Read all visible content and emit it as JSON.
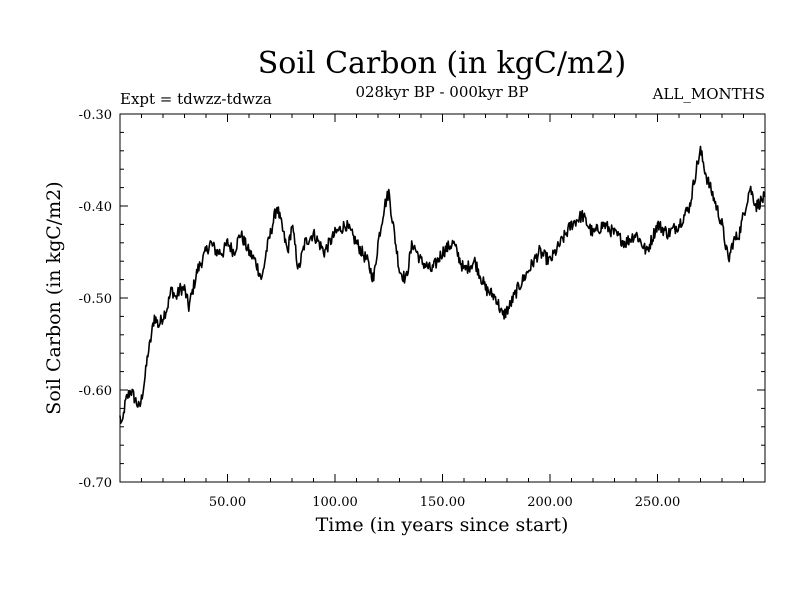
{
  "chart_data": {
    "type": "line",
    "title": "Soil Carbon (in kgC/m2)",
    "subtitle": "028kyr BP - 000kyr BP",
    "left_label": "Expt = tdwzz-tdwza",
    "right_label": "ALL_MONTHS",
    "xlabel": "Time (in years since start)",
    "ylabel": "Soil Carbon (in kgC/m2)",
    "xlim": [
      0,
      300
    ],
    "ylim": [
      -0.7,
      -0.3
    ],
    "x_ticks": [
      50,
      100,
      150,
      200,
      250
    ],
    "x_tick_labels": [
      "50.00",
      "100.00",
      "150.00",
      "200.00",
      "250.00"
    ],
    "y_ticks": [
      -0.7,
      -0.6,
      -0.5,
      -0.4,
      -0.3
    ],
    "y_tick_labels": [
      "-0.70",
      "-0.60",
      "-0.50",
      "-0.40",
      "-0.30"
    ],
    "grid": false,
    "series": [
      {
        "name": "Soil Carbon",
        "x": [
          0,
          1,
          2,
          3,
          5,
          7,
          9,
          10,
          12,
          13,
          14,
          16,
          18,
          20,
          22,
          24,
          26,
          28,
          30,
          32,
          34,
          36,
          38,
          40,
          42,
          45,
          48,
          50,
          53,
          56,
          60,
          63,
          66,
          68,
          70,
          73,
          76,
          78,
          80,
          83,
          86,
          90,
          95,
          100,
          105,
          110,
          115,
          118,
          120,
          123,
          125,
          127,
          130,
          133,
          136,
          140,
          145,
          150,
          155,
          160,
          165,
          170,
          175,
          178,
          181,
          185,
          190,
          195,
          200,
          205,
          210,
          215,
          220,
          225,
          230,
          235,
          240,
          245,
          250,
          255,
          260,
          265,
          268,
          270,
          273,
          276,
          280,
          283,
          285,
          288,
          290,
          293,
          296,
          300
        ],
        "values": [
          -0.63,
          -0.64,
          -0.62,
          -0.61,
          -0.6,
          -0.61,
          -0.62,
          -0.61,
          -0.58,
          -0.56,
          -0.55,
          -0.52,
          -0.53,
          -0.52,
          -0.51,
          -0.49,
          -0.5,
          -0.49,
          -0.49,
          -0.51,
          -0.49,
          -0.47,
          -0.46,
          -0.45,
          -0.44,
          -0.45,
          -0.45,
          -0.44,
          -0.45,
          -0.43,
          -0.45,
          -0.46,
          -0.48,
          -0.45,
          -0.43,
          -0.4,
          -0.43,
          -0.45,
          -0.42,
          -0.47,
          -0.44,
          -0.43,
          -0.45,
          -0.43,
          -0.42,
          -0.44,
          -0.46,
          -0.48,
          -0.44,
          -0.4,
          -0.385,
          -0.42,
          -0.47,
          -0.48,
          -0.44,
          -0.46,
          -0.47,
          -0.45,
          -0.44,
          -0.47,
          -0.46,
          -0.49,
          -0.5,
          -0.52,
          -0.51,
          -0.49,
          -0.47,
          -0.45,
          -0.46,
          -0.44,
          -0.42,
          -0.41,
          -0.43,
          -0.42,
          -0.43,
          -0.44,
          -0.43,
          -0.45,
          -0.42,
          -0.43,
          -0.42,
          -0.4,
          -0.36,
          -0.34,
          -0.37,
          -0.39,
          -0.42,
          -0.46,
          -0.44,
          -0.43,
          -0.41,
          -0.38,
          -0.4,
          -0.39
        ]
      }
    ]
  }
}
